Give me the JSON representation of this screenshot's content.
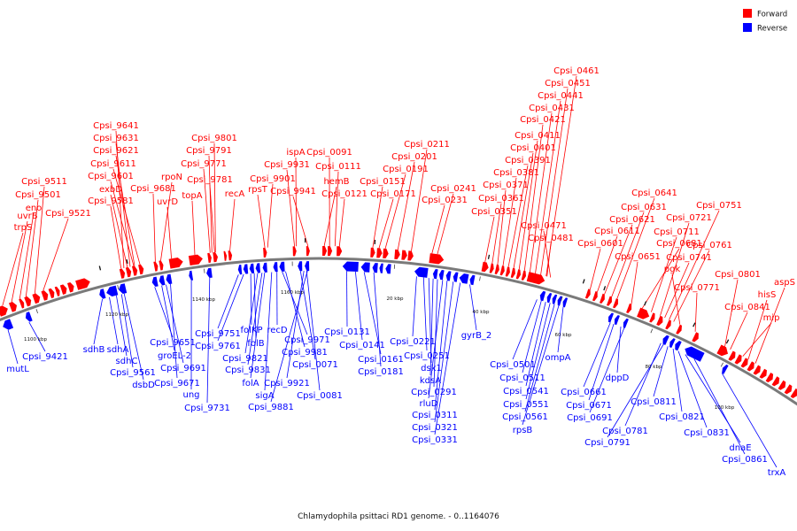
{
  "caption": "Chlamydophila psittaci RD1 genome. - 0..1164076",
  "legend": {
    "placement": "top-right",
    "forward": {
      "label": "Forward",
      "color": "#ff0000"
    },
    "reverse": {
      "label": "Reverse",
      "color": "#0000ff"
    }
  },
  "backbone_color": "#7a7a7a",
  "scale_labels": [
    "1100 kbp",
    "1120 kbp",
    "1140 kbp",
    "1160 kbp",
    "20 kbp",
    "40 kbp",
    "60 kbp",
    "80 kbp",
    "100 kbp"
  ],
  "forward_labels": [
    "trpS",
    "uvrB",
    "eno",
    "Cpsi_9501",
    "Cpsi_9511",
    "Cpsi_9521",
    "Cpsi_9581",
    "exbD",
    "Cpsi_9601",
    "Cpsi_9611",
    "Cpsi_9621",
    "Cpsi_9631",
    "Cpsi_9641",
    "Cpsi_9681",
    "rpoN",
    "uvrD",
    "topA",
    "Cpsi_9771",
    "Cpsi_9781",
    "Cpsi_9791",
    "Cpsi_9801",
    "recA",
    "rpsT",
    "Cpsi_9901",
    "Cpsi_9931",
    "ispA",
    "Cpsi_9941",
    "hemB",
    "Cpsi_0091",
    "Cpsi_0111",
    "Cpsi_0121",
    "Cpsi_0151",
    "Cpsi_0171",
    "Cpsi_0191",
    "Cpsi_0201",
    "Cpsi_0211",
    "Cpsi_0231",
    "Cpsi_0241",
    "Cpsi_0351",
    "Cpsi_0361",
    "Cpsi_0371",
    "Cpsi_0381",
    "Cpsi_0391",
    "Cpsi_0401",
    "Cpsi_0411",
    "Cpsi_0421",
    "Cpsi_0431",
    "Cpsi_0441",
    "Cpsi_0451",
    "Cpsi_0461",
    "Cpsi_0471",
    "Cpsi_0481",
    "Cpsi_0601",
    "Cpsi_0611",
    "Cpsi_0621",
    "Cpsi_0631",
    "Cpsi_0641",
    "Cpsi_0651",
    "Cpsi_0681",
    "Cpsi_0711",
    "Cpsi_0721",
    "Cpsi_0741",
    "Cpsi_0751",
    "Cpsi_0761",
    "pgk",
    "Cpsi_0771",
    "Cpsi_0801",
    "Cpsi_0841",
    "mip",
    "hisS",
    "aspS"
  ],
  "reverse_labels": [
    "mutL",
    "Cpsi_9421",
    "sdhB",
    "sdhA",
    "sdhC",
    "Cpsi_9561",
    "dsbD",
    "Cpsi_9651",
    "groEL-2",
    "Cpsi_9691",
    "Cpsi_9671",
    "ung",
    "Cpsi_9731",
    "Cpsi_9751",
    "Cpsi_9761",
    "folKP",
    "folB",
    "Cpsi_9821",
    "Cpsi_9831",
    "folA",
    "sigA",
    "recD",
    "Cpsi_9971",
    "Cpsi_9981",
    "Cpsi_0071",
    "Cpsi_9921",
    "Cpsi_9881",
    "Cpsi_0081",
    "Cpsi_0131",
    "Cpsi_0141",
    "Cpsi_0161",
    "Cpsi_0181",
    "Cpsi_0221",
    "Cpsi_0251",
    "dsk1",
    "kdsA",
    "Cpsi_0291",
    "rluD",
    "Cpsi_0311",
    "Cpsi_0321",
    "Cpsi_0331",
    "gyrB_2",
    "Cpsi_0501",
    "Cpsi_0511",
    "Cpsi_0541",
    "Cpsi_0551",
    "Cpsi_0561",
    "rpsB",
    "ompA",
    "Cpsi_0661",
    "Cpsi_0671",
    "dppD",
    "Cpsi_0691",
    "Cpsi_0781",
    "Cpsi_0791",
    "Cpsi_0811",
    "Cpsi_0821",
    "Cpsi_0831",
    "dnaE",
    "Cpsi_0861",
    "trxA"
  ]
}
